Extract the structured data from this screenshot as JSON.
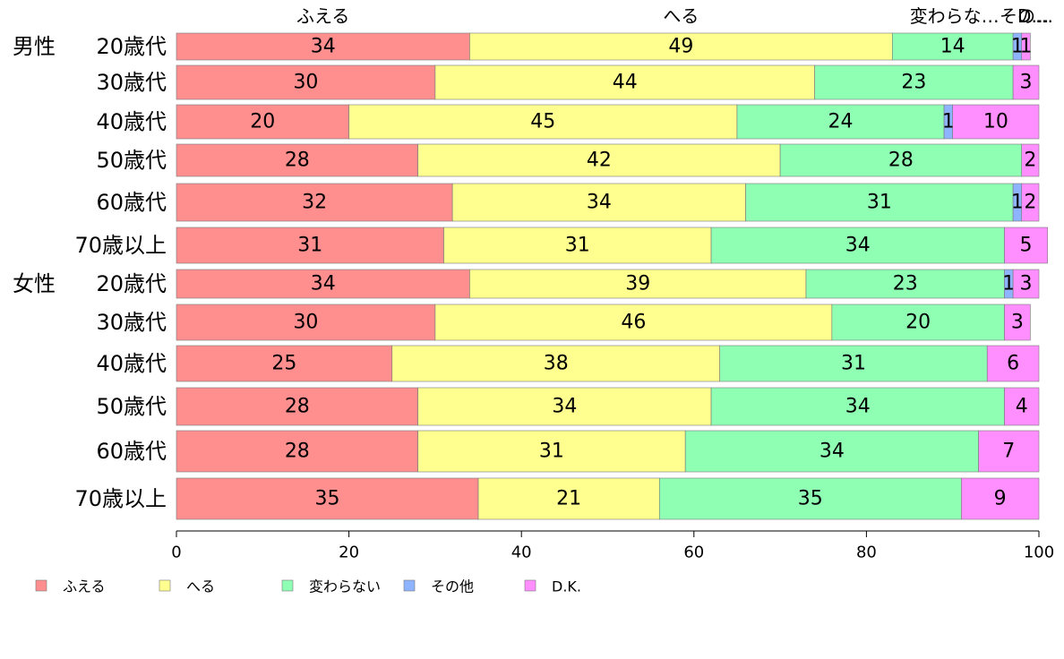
{
  "chart_data": {
    "type": "bar",
    "orientation": "horizontal",
    "stacked": true,
    "xlim": [
      0,
      100
    ],
    "x_ticks": [
      "0",
      "20",
      "40",
      "60",
      "80",
      "100"
    ],
    "column_headers": [
      "ふえる",
      "へる",
      "変わらな…",
      "その…",
      "D…"
    ],
    "groups": [
      {
        "name": "男性",
        "rows": [
          "20歳代",
          "30歳代",
          "40歳代",
          "50歳代",
          "60歳代",
          "70歳以上"
        ]
      },
      {
        "name": "女性",
        "rows": [
          "20歳代",
          "30歳代",
          "40歳代",
          "50歳代",
          "60歳代",
          "70歳以上"
        ]
      }
    ],
    "categories": [
      "男性 20歳代",
      "男性 30歳代",
      "男性 40歳代",
      "男性 50歳代",
      "男性 60歳代",
      "男性 70歳以上",
      "女性 20歳代",
      "女性 30歳代",
      "女性 40歳代",
      "女性 50歳代",
      "女性 60歳代",
      "女性 70歳以上"
    ],
    "series": [
      {
        "name": "ふえる",
        "color": "#FF8F8F",
        "values": [
          34,
          30,
          20,
          28,
          32,
          31,
          34,
          30,
          25,
          28,
          28,
          35
        ]
      },
      {
        "name": "へる",
        "color": "#FFFF8F",
        "values": [
          49,
          44,
          45,
          42,
          34,
          31,
          39,
          46,
          38,
          34,
          31,
          21
        ]
      },
      {
        "name": "変わらない",
        "color": "#8FFFB4",
        "values": [
          14,
          23,
          24,
          28,
          31,
          34,
          23,
          20,
          31,
          34,
          34,
          35
        ]
      },
      {
        "name": "その他",
        "color": "#8FB4FF",
        "values": [
          1,
          0,
          1,
          0,
          1,
          0,
          1,
          0,
          0,
          0,
          0,
          0
        ]
      },
      {
        "name": "D.K.",
        "color": "#FF8FFF",
        "values": [
          1,
          3,
          10,
          2,
          2,
          5,
          3,
          3,
          6,
          4,
          7,
          9
        ]
      }
    ],
    "grid": false,
    "legend_position": "bottom"
  }
}
